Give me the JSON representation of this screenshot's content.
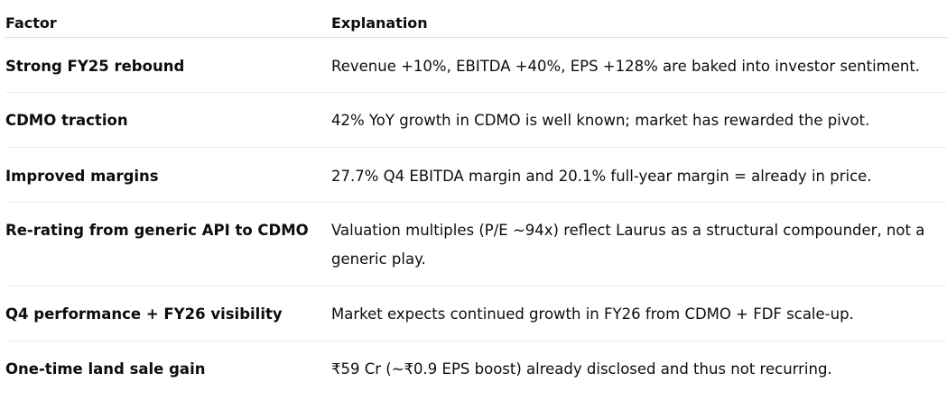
{
  "table": {
    "headers": [
      "Factor",
      "Explanation"
    ],
    "rows": [
      {
        "factor": "Strong FY25 rebound",
        "explanation": "Revenue +10%, EBITDA +40%, EPS +128% are baked into investor sentiment."
      },
      {
        "factor": "CDMO traction",
        "explanation": "42% YoY growth in CDMO is well known; market has rewarded the pivot."
      },
      {
        "factor": "Improved margins",
        "explanation": "27.7% Q4 EBITDA margin and 20.1% full-year margin = already in price."
      },
      {
        "factor": "Re-rating from generic API to CDMO",
        "explanation": "Valuation multiples (P/E ~94x) reflect Laurus as a structural compounder, not a generic play."
      },
      {
        "factor": "Q4 performance + FY26 visibility",
        "explanation": "Market expects continued growth in FY26 from CDMO + FDF scale-up."
      },
      {
        "factor": "One-time land sale gain",
        "explanation": "₹59 Cr (~₹0.9 EPS boost) already disclosed and thus not recurring."
      }
    ]
  }
}
